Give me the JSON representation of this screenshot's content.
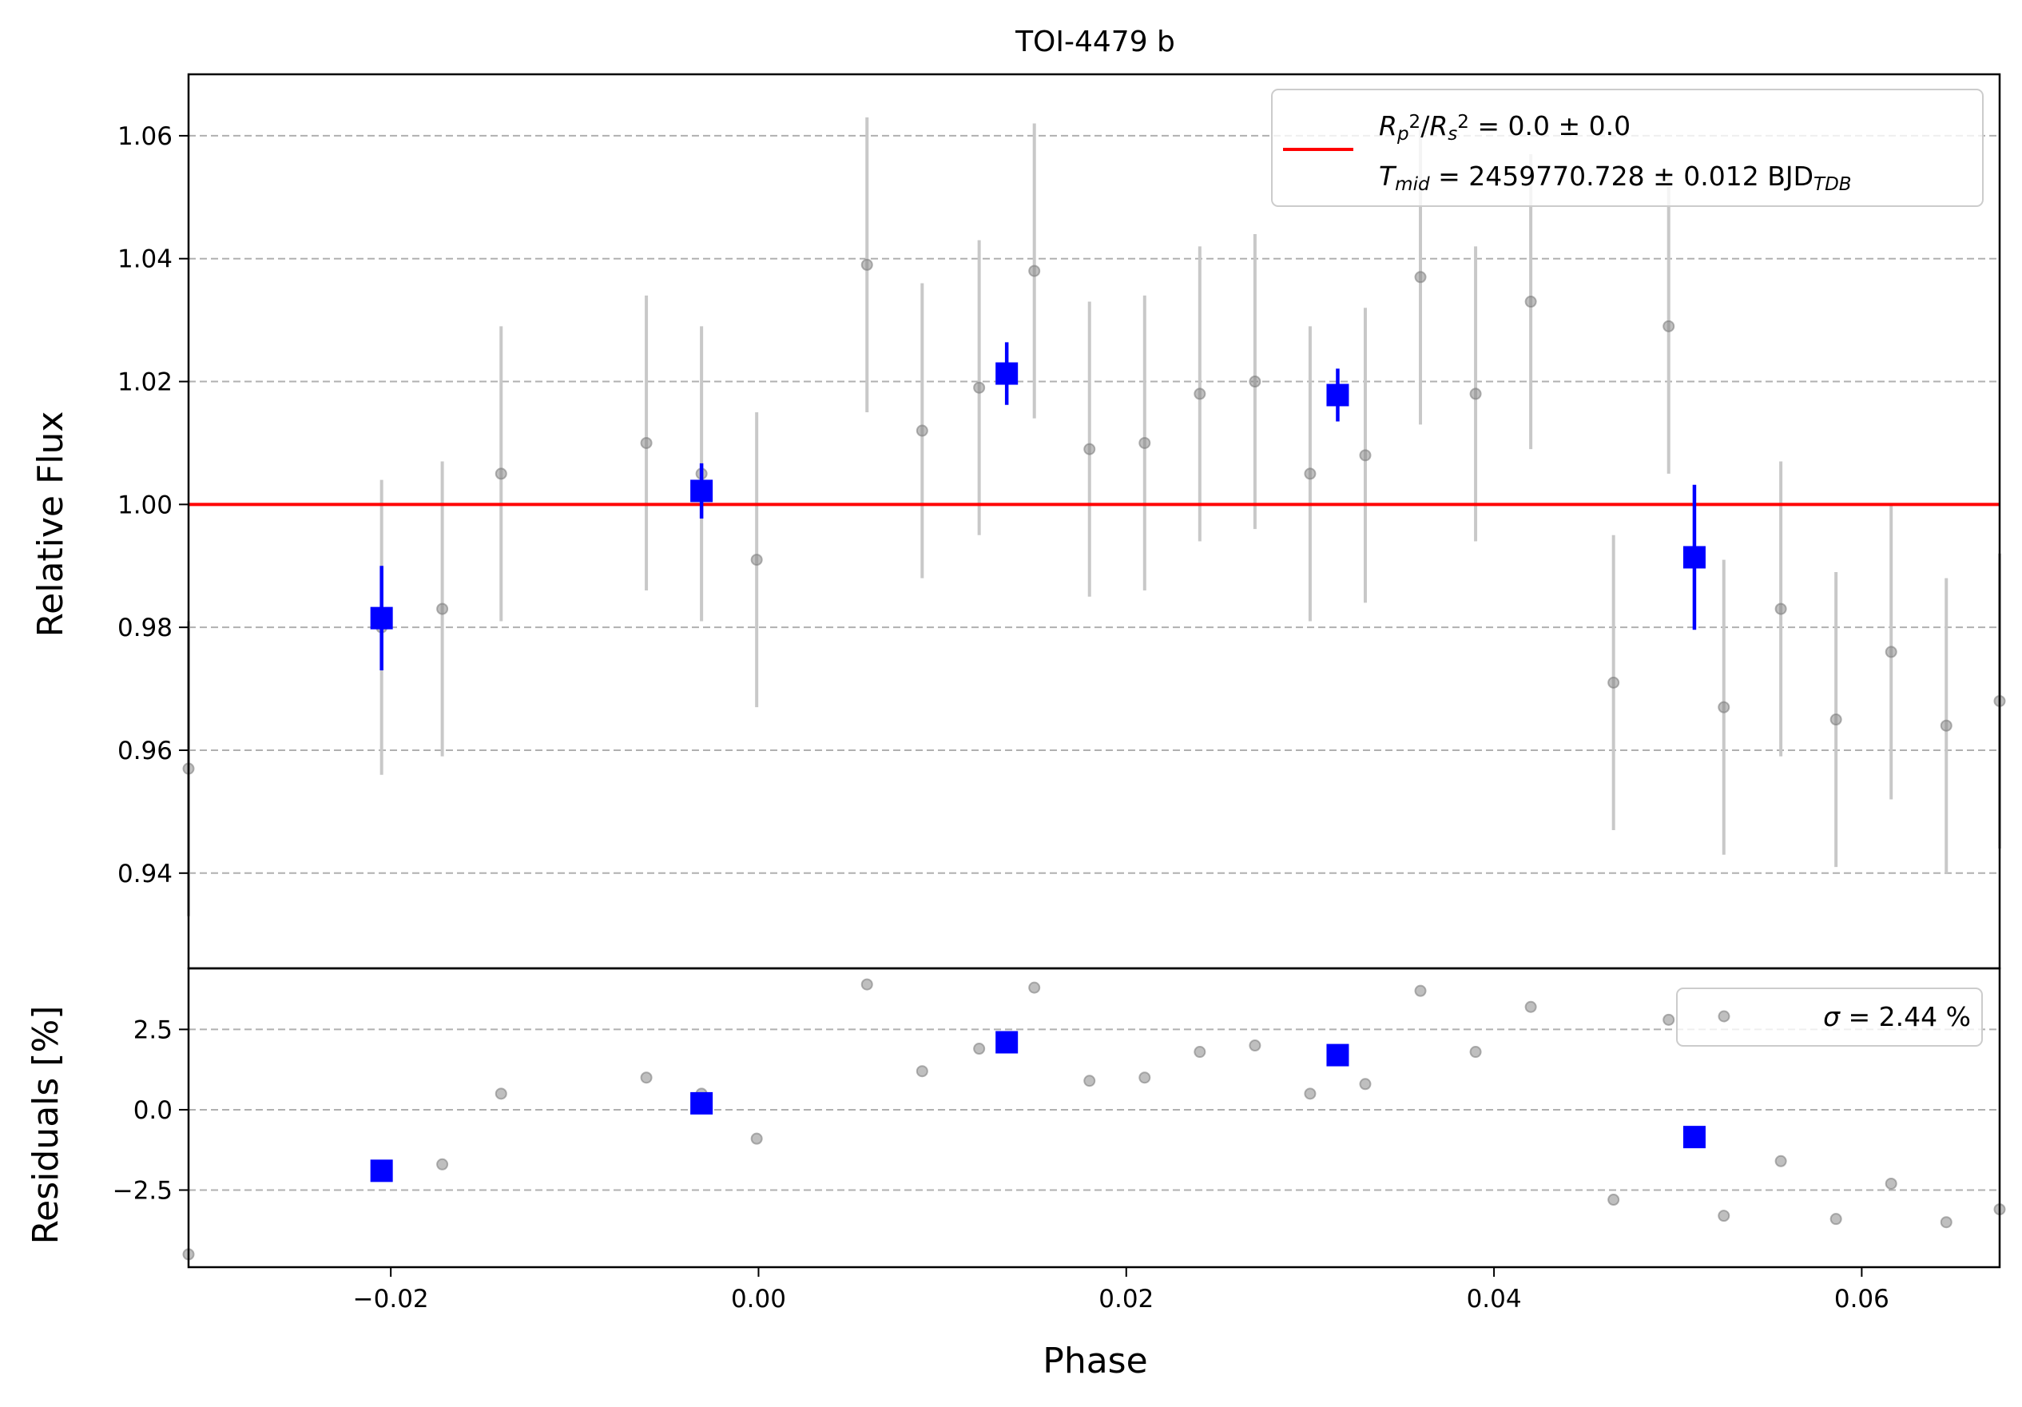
{
  "chart_data": [
    {
      "type": "scatter",
      "title": "TOI-4479 b",
      "xlabel": "",
      "ylabel": "Relative Flux",
      "xlim": [
        -0.031,
        0.0675
      ],
      "ylim": [
        0.9245,
        1.07
      ],
      "yticks": [
        0.94,
        0.96,
        0.98,
        1.0,
        1.02,
        1.04,
        1.06
      ],
      "ytick_labels": [
        "0.94",
        "0.96",
        "0.98",
        "1.00",
        "1.02",
        "1.04",
        "1.06"
      ],
      "grid": "y-dashed",
      "legend_position": "top-right",
      "model": {
        "value": 1.0,
        "color": "#ff0000",
        "legend_label": "R_p^2/R_s^2 = 0.0 ± 0.0",
        "legend_parts": [
          {
            "t": "R",
            "i": true
          },
          {
            "t": "p",
            "i": true,
            "sub": true
          },
          {
            "t": "2",
            "sup": true
          },
          {
            "t": "/"
          },
          {
            "t": "R",
            "i": true
          },
          {
            "t": "s",
            "i": true,
            "sub": true
          },
          {
            "t": "2",
            "sup": true
          },
          {
            "t": " = 0.0 ± 0.0"
          }
        ],
        "legend_label_2": "T_mid = 2459770.728 ± 0.012 BJD_TDB",
        "legend_parts_2": [
          {
            "t": "T",
            "i": true
          },
          {
            "t": "mid",
            "i": true,
            "sub": true
          },
          {
            "t": " = 2459770.728 ± 0.012 BJD"
          },
          {
            "t": "TDB",
            "i": true,
            "sub": true
          }
        ]
      },
      "series": [
        {
          "kind": "unbinned",
          "color": "#808080",
          "points": [
            {
              "x": -0.031,
              "y": 0.957,
              "err": 0.024
            },
            {
              "x": -0.0205,
              "y": 0.98,
              "err": 0.024
            },
            {
              "x": -0.0172,
              "y": 0.983,
              "err": 0.024
            },
            {
              "x": -0.014,
              "y": 1.005,
              "err": 0.024
            },
            {
              "x": -0.0061,
              "y": 1.01,
              "err": 0.024
            },
            {
              "x": -0.0031,
              "y": 1.005,
              "err": 0.024
            },
            {
              "x": -0.0001,
              "y": 0.991,
              "err": 0.024
            },
            {
              "x": 0.0059,
              "y": 1.039,
              "err": 0.024
            },
            {
              "x": 0.0089,
              "y": 1.012,
              "err": 0.024
            },
            {
              "x": 0.012,
              "y": 1.019,
              "err": 0.024
            },
            {
              "x": 0.015,
              "y": 1.038,
              "err": 0.024
            },
            {
              "x": 0.018,
              "y": 1.009,
              "err": 0.024
            },
            {
              "x": 0.021,
              "y": 1.01,
              "err": 0.024
            },
            {
              "x": 0.024,
              "y": 1.018,
              "err": 0.024
            },
            {
              "x": 0.027,
              "y": 1.02,
              "err": 0.024
            },
            {
              "x": 0.03,
              "y": 1.005,
              "err": 0.024
            },
            {
              "x": 0.033,
              "y": 1.008,
              "err": 0.024
            },
            {
              "x": 0.036,
              "y": 1.037,
              "err": 0.024
            },
            {
              "x": 0.039,
              "y": 1.018,
              "err": 0.024
            },
            {
              "x": 0.042,
              "y": 1.033,
              "err": 0.024
            },
            {
              "x": 0.0465,
              "y": 0.971,
              "err": 0.024
            },
            {
              "x": 0.0495,
              "y": 1.029,
              "err": 0.024
            },
            {
              "x": 0.0525,
              "y": 0.967,
              "err": 0.024
            },
            {
              "x": 0.0556,
              "y": 0.983,
              "err": 0.024
            },
            {
              "x": 0.0586,
              "y": 0.965,
              "err": 0.024
            },
            {
              "x": 0.0616,
              "y": 0.976,
              "err": 0.024
            },
            {
              "x": 0.0646,
              "y": 0.964,
              "err": 0.024
            },
            {
              "x": 0.0675,
              "y": 0.968,
              "err": 0.024
            }
          ]
        },
        {
          "kind": "binned",
          "color": "#0000ff",
          "points": [
            {
              "x": -0.0205,
              "y": 0.9815,
              "err": 0.0085
            },
            {
              "x": -0.0031,
              "y": 1.0022,
              "err": 0.0045
            },
            {
              "x": 0.0135,
              "y": 1.0213,
              "err": 0.0051
            },
            {
              "x": 0.0315,
              "y": 1.0178,
              "err": 0.0043
            },
            {
              "x": 0.0509,
              "y": 0.9914,
              "err": 0.0118
            }
          ]
        }
      ]
    },
    {
      "type": "scatter",
      "title": "",
      "xlabel": "Phase",
      "ylabel": "Residuals [%]",
      "xlim": [
        -0.031,
        0.0675
      ],
      "ylim": [
        -4.9,
        4.4
      ],
      "xticks": [
        -0.02,
        0.0,
        0.02,
        0.04,
        0.06
      ],
      "xtick_labels": [
        "−0.02",
        "0.00",
        "0.02",
        "0.04",
        "0.06"
      ],
      "yticks": [
        -2.5,
        0.0,
        2.5
      ],
      "ytick_labels": [
        "−2.5",
        "0.0",
        "2.5"
      ],
      "grid": "y-dashed",
      "legend_position": "top-right",
      "legend": {
        "label": "σ = 2.44 %",
        "symbol": "σ",
        "text": " = 2.44 %"
      },
      "series": [
        {
          "kind": "unbinned",
          "color": "#808080",
          "points": [
            {
              "x": -0.031,
              "y": -4.5
            },
            {
              "x": -0.0205,
              "y": -1.9
            },
            {
              "x": -0.0172,
              "y": -1.7
            },
            {
              "x": -0.014,
              "y": 0.5
            },
            {
              "x": -0.0061,
              "y": 1.0
            },
            {
              "x": -0.0031,
              "y": 0.5
            },
            {
              "x": -0.0001,
              "y": -0.9
            },
            {
              "x": 0.0059,
              "y": 3.9
            },
            {
              "x": 0.0089,
              "y": 1.2
            },
            {
              "x": 0.012,
              "y": 1.9
            },
            {
              "x": 0.015,
              "y": 3.8
            },
            {
              "x": 0.018,
              "y": 0.9
            },
            {
              "x": 0.021,
              "y": 1.0
            },
            {
              "x": 0.024,
              "y": 1.8
            },
            {
              "x": 0.027,
              "y": 2.0
            },
            {
              "x": 0.03,
              "y": 0.5
            },
            {
              "x": 0.033,
              "y": 0.8
            },
            {
              "x": 0.036,
              "y": 3.7
            },
            {
              "x": 0.039,
              "y": 1.8
            },
            {
              "x": 0.042,
              "y": 3.2
            },
            {
              "x": 0.0465,
              "y": -2.8
            },
            {
              "x": 0.0495,
              "y": 2.8
            },
            {
              "x": 0.0525,
              "y": -3.3
            },
            {
              "x": 0.0556,
              "y": -1.6
            },
            {
              "x": 0.0586,
              "y": -3.4
            },
            {
              "x": 0.0616,
              "y": -2.3
            },
            {
              "x": 0.0646,
              "y": -3.5
            },
            {
              "x": 0.0675,
              "y": -3.1
            }
          ]
        },
        {
          "kind": "binned",
          "color": "#0000ff",
          "points": [
            {
              "x": -0.0205,
              "y": -1.9
            },
            {
              "x": -0.0031,
              "y": 0.2
            },
            {
              "x": 0.0135,
              "y": 2.1
            },
            {
              "x": 0.0315,
              "y": 1.7
            },
            {
              "x": 0.0509,
              "y": -0.85
            }
          ]
        }
      ]
    }
  ]
}
